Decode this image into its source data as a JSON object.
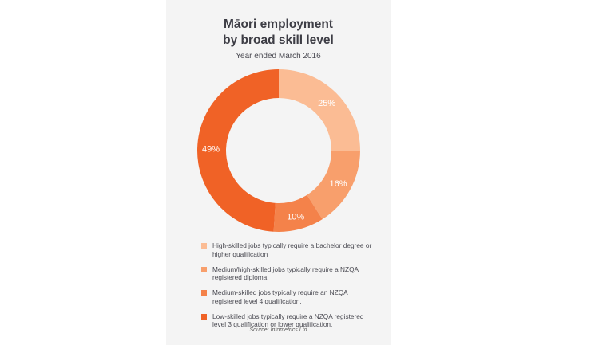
{
  "chart_data": {
    "type": "pie",
    "variant": "donut",
    "title": "Māori employment by broad skill level",
    "title_lines": [
      "Māori employment",
      "by broad skill level"
    ],
    "subtitle": "Year ended March 2016",
    "categories": [
      "High-skilled jobs typically require a bachelor degree or higher qualification",
      "Medium/high-skilled jobs typically require a NZQA registered diploma.",
      "Medium-skilled jobs typically require an NZQA registered level 4 qualification.",
      "Low-skilled jobs typically require a NZQA registered level 3 qualification or lower qualification."
    ],
    "values": [
      25,
      16,
      10,
      49
    ],
    "data_labels": [
      "25%",
      "16%",
      "10%",
      "49%"
    ],
    "colors": [
      "#fbbc94",
      "#f89f6c",
      "#f4824a",
      "#f06226"
    ],
    "legend_position": "bottom",
    "source": "Source: Infometrics Ltd"
  }
}
